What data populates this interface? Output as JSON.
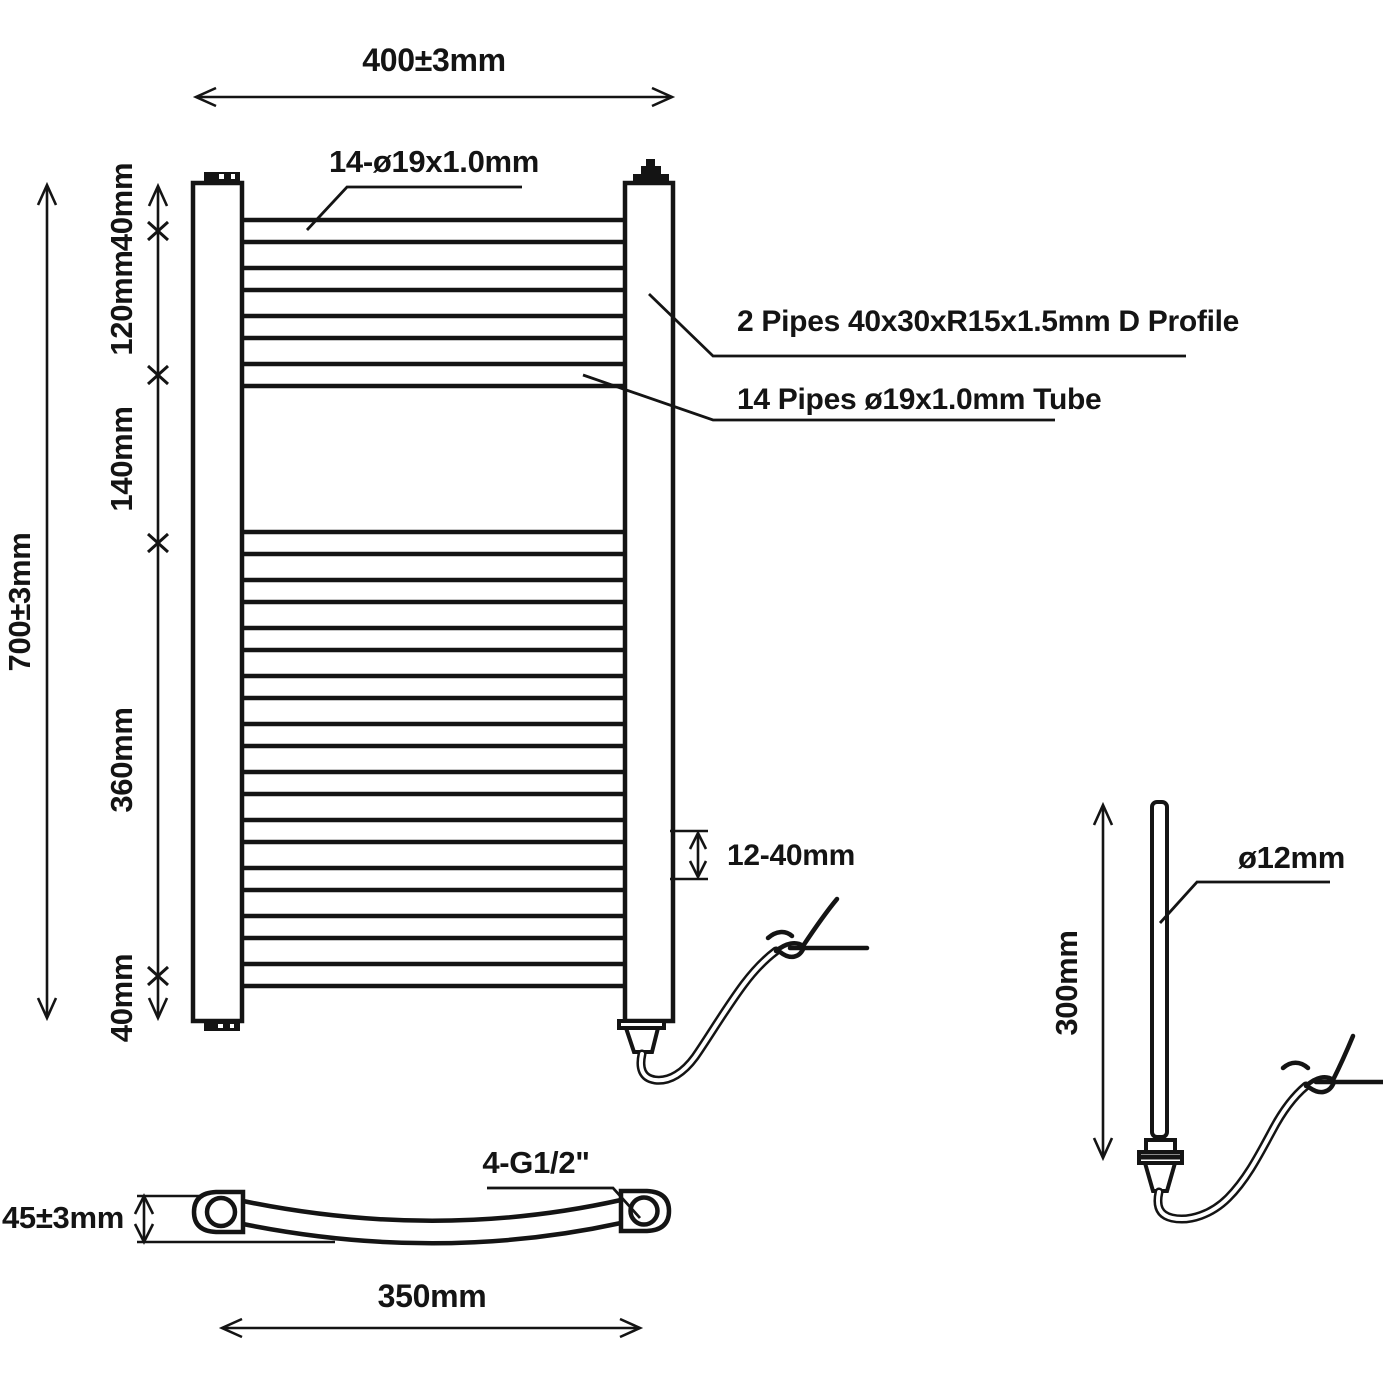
{
  "front_view": {
    "width_dim": "400±3mm",
    "height_dim": "700±3mm",
    "top_tube_label": "14-ø19x1.0mm",
    "tube_count": 14,
    "sections": [
      "40mm",
      "120mm",
      "140mm",
      "360mm",
      "40mm"
    ],
    "d_profile_label": "2 Pipes 40x30xR15x1.5mm D Profile",
    "tube_label": "14 Pipes ø19x1.0mm Tube",
    "spacing_dim": "12-40mm"
  },
  "bottom_view": {
    "depth_dim": "45±3mm",
    "thread_label": "4-G1/2\"",
    "width_dim": "350mm"
  },
  "element_view": {
    "length_dim": "300mm",
    "diameter_label": "ø12mm"
  }
}
